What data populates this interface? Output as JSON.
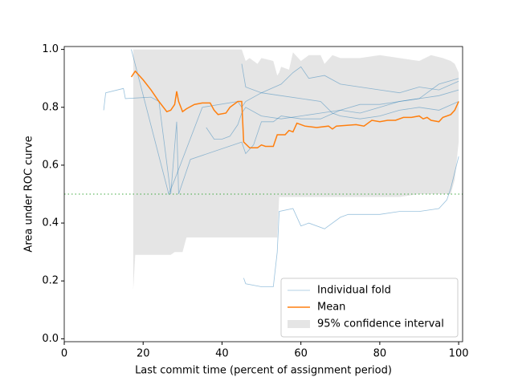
{
  "chart_data": {
    "type": "line",
    "xlabel": "Last commit time (percent of assignment period)",
    "ylabel": "Area under ROC curve",
    "xlim": [
      0,
      101
    ],
    "ylim": [
      -0.01,
      1.01
    ],
    "xticks": [
      0,
      20,
      40,
      60,
      80,
      100
    ],
    "yticks": [
      {
        "value": 0,
        "label": "0.0"
      },
      0.2,
      0.4,
      0.6,
      0.8,
      {
        "value": 1,
        "label": "1.0"
      }
    ],
    "legend": "lower right",
    "hline": {
      "value": 0.5,
      "color": "#2ca02c"
    },
    "band": {
      "name": "95% confidence interval",
      "color": "#bdbdbd",
      "x": [
        17.5,
        18,
        22,
        27,
        28,
        30,
        31,
        45,
        46,
        47,
        49,
        50,
        53,
        54,
        54.5,
        55,
        57,
        58,
        60,
        62,
        65,
        66,
        68,
        70,
        75,
        80,
        85,
        90,
        93,
        96,
        98,
        99,
        100
      ],
      "upper": [
        1.0,
        1.0,
        1.0,
        1.0,
        1.0,
        1.0,
        1.0,
        1.0,
        0.96,
        0.97,
        0.95,
        0.97,
        0.96,
        0.91,
        0.92,
        0.94,
        0.93,
        0.99,
        0.96,
        0.98,
        0.98,
        0.95,
        0.98,
        0.97,
        0.97,
        0.98,
        0.97,
        0.96,
        0.98,
        0.97,
        0.96,
        0.95,
        0.92
      ],
      "lower": [
        0.17,
        0.29,
        0.29,
        0.29,
        0.3,
        0.3,
        0.35,
        0.35,
        0.35,
        0.35,
        0.35,
        0.35,
        0.35,
        0.35,
        0.49,
        0.49,
        0.49,
        0.49,
        0.49,
        0.49,
        0.49,
        0.49,
        0.49,
        0.49,
        0.49,
        0.49,
        0.49,
        0.5,
        0.5,
        0.5,
        0.5,
        0.55,
        0.68
      ]
    },
    "folds": {
      "name": "Individual fold",
      "color": "#1f77b4",
      "lines": [
        {
          "x": [
            10,
            10.5,
            15,
            15.5,
            22,
            24,
            27,
            28.5,
            29,
            32,
            45,
            46,
            48,
            50,
            53,
            55,
            60,
            65,
            70,
            75,
            80,
            85,
            90,
            95,
            100
          ],
          "values": [
            0.79,
            0.85,
            0.865,
            0.83,
            0.835,
            0.82,
            0.5,
            0.75,
            0.5,
            0.62,
            0.68,
            0.64,
            0.67,
            0.75,
            0.75,
            0.77,
            0.76,
            0.76,
            0.79,
            0.78,
            0.8,
            0.82,
            0.83,
            0.88,
            0.9
          ]
        },
        {
          "x": [
            17,
            26.5,
            28,
            35,
            44,
            45,
            46,
            50,
            55,
            58,
            60,
            62,
            66,
            70,
            75,
            80,
            85,
            90,
            95,
            100
          ],
          "values": [
            1.0,
            0.5,
            0.55,
            0.8,
            0.82,
            0.8,
            0.82,
            0.85,
            0.88,
            0.92,
            0.94,
            0.9,
            0.91,
            0.88,
            0.87,
            0.86,
            0.85,
            0.87,
            0.86,
            0.89
          ]
        },
        {
          "x": [
            45.5,
            46,
            50,
            53,
            54,
            54.5,
            58,
            60,
            62,
            66,
            70,
            72,
            75,
            80,
            85,
            90,
            95,
            97,
            98,
            100
          ],
          "values": [
            0.21,
            0.19,
            0.18,
            0.18,
            0.3,
            0.44,
            0.45,
            0.39,
            0.4,
            0.38,
            0.42,
            0.43,
            0.43,
            0.43,
            0.44,
            0.44,
            0.45,
            0.48,
            0.52,
            0.63
          ]
        },
        {
          "x": [
            36,
            38,
            40,
            42,
            44,
            45,
            46,
            50,
            55,
            60,
            65,
            70,
            75,
            80,
            85,
            90,
            95,
            100
          ],
          "values": [
            0.73,
            0.69,
            0.69,
            0.7,
            0.74,
            0.78,
            0.8,
            0.77,
            0.76,
            0.77,
            0.78,
            0.79,
            0.81,
            0.81,
            0.82,
            0.83,
            0.84,
            0.86
          ]
        },
        {
          "x": [
            45,
            46,
            50,
            55,
            60,
            65,
            68,
            70,
            75,
            80,
            85,
            90,
            95,
            100
          ],
          "values": [
            0.95,
            0.87,
            0.85,
            0.84,
            0.83,
            0.82,
            0.78,
            0.77,
            0.76,
            0.77,
            0.79,
            0.8,
            0.79,
            0.82
          ]
        }
      ]
    },
    "series": [
      {
        "name": "Mean",
        "color": "#ff7f0e",
        "x": [
          17,
          18,
          20,
          22,
          24,
          26,
          27,
          28,
          28.5,
          29,
          30,
          31,
          33,
          35,
          37,
          38,
          39,
          41,
          42,
          44,
          45,
          45.5,
          47,
          49,
          50,
          51,
          53,
          54,
          56,
          57,
          58,
          59,
          61,
          64,
          67,
          68,
          69,
          74,
          76,
          78,
          80,
          82,
          84,
          86,
          88,
          90,
          91,
          92,
          93,
          95,
          96,
          98,
          99,
          100
        ],
        "values": [
          0.905,
          0.925,
          0.895,
          0.86,
          0.82,
          0.785,
          0.79,
          0.81,
          0.855,
          0.82,
          0.785,
          0.795,
          0.81,
          0.815,
          0.815,
          0.79,
          0.775,
          0.78,
          0.8,
          0.82,
          0.82,
          0.68,
          0.66,
          0.66,
          0.67,
          0.665,
          0.665,
          0.705,
          0.705,
          0.72,
          0.715,
          0.745,
          0.735,
          0.73,
          0.735,
          0.725,
          0.735,
          0.74,
          0.735,
          0.755,
          0.75,
          0.755,
          0.755,
          0.765,
          0.765,
          0.77,
          0.76,
          0.765,
          0.755,
          0.75,
          0.765,
          0.775,
          0.79,
          0.82
        ]
      }
    ]
  }
}
